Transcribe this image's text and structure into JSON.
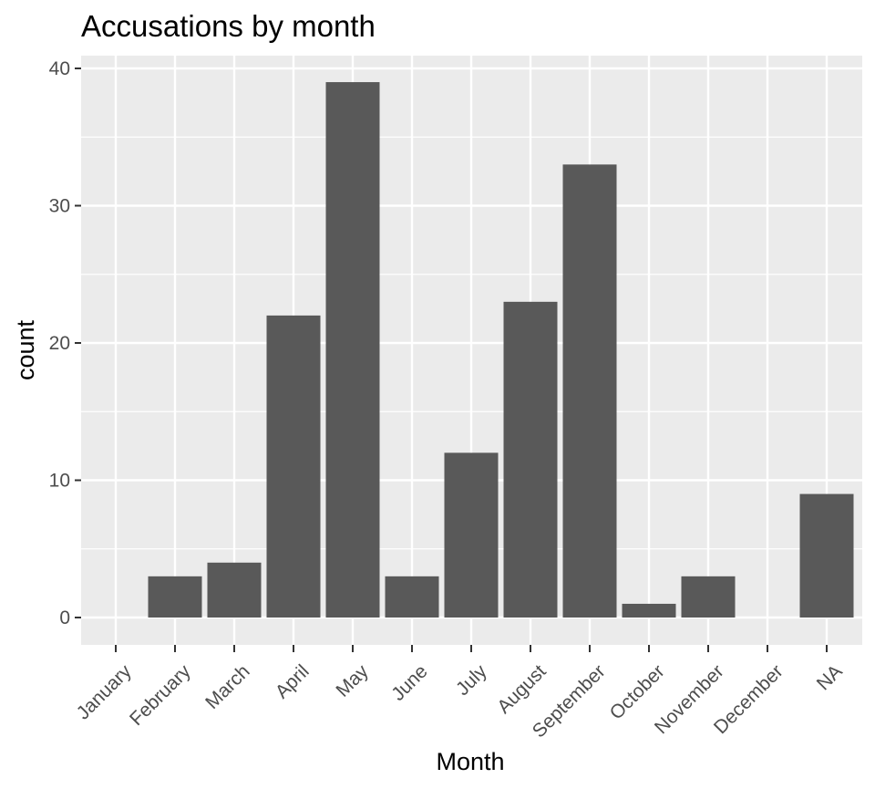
{
  "chart_data": {
    "type": "bar",
    "title": "Accusations by month",
    "xlabel": "Month",
    "ylabel": "count",
    "categories": [
      "January",
      "February",
      "March",
      "April",
      "May",
      "June",
      "July",
      "August",
      "September",
      "October",
      "November",
      "December",
      "NA"
    ],
    "values": [
      0,
      3,
      4,
      22,
      39,
      3,
      12,
      23,
      33,
      1,
      3,
      0,
      9
    ],
    "yticks": [
      0,
      10,
      20,
      30,
      40
    ],
    "ylim": [
      -2,
      42
    ],
    "grid": true,
    "legend": "none",
    "colors": {
      "panel_background": "#ebebeb",
      "grid_major": "#ffffff",
      "bar_fill": "#595959",
      "tick_mark": "#333333",
      "tick_text": "#4d4d4d"
    }
  }
}
